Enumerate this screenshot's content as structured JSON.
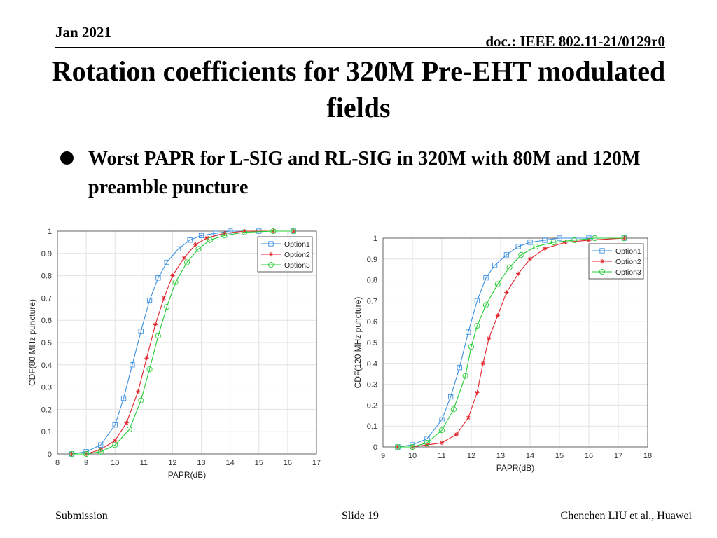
{
  "header": {
    "date": "Jan 2021",
    "doc": "doc.: IEEE 802.11-21/0129r0"
  },
  "title": "Rotation coefficients for 320M Pre-EHT modulated fields",
  "bullet": "Worst PAPR for L-SIG and RL-SIG in 320M with 80M and 120M preamble puncture",
  "footer": {
    "left": "Submission",
    "center": "Slide 19",
    "right": "Chenchen LIU et al., Huawei"
  },
  "colors": {
    "option1": "#3a8fe0",
    "option2": "#e0222a",
    "option3": "#22cc33"
  },
  "chart_data": [
    {
      "type": "line",
      "xlabel": "PAPR(dB)",
      "ylabel": "CDF(80 MHz puncture)",
      "xlim": [
        8,
        17
      ],
      "ylim": [
        0,
        1
      ],
      "xticks": [
        8,
        9,
        10,
        11,
        12,
        13,
        14,
        15,
        16,
        17
      ],
      "yticks": [
        0,
        0.1,
        0.2,
        0.3,
        0.4,
        0.5,
        0.6,
        0.7,
        0.8,
        0.9,
        1
      ],
      "grid": true,
      "legend": "top-right",
      "series": [
        {
          "name": "Option1",
          "marker": "square",
          "x": [
            8.5,
            9.0,
            9.5,
            10.0,
            10.3,
            10.6,
            10.9,
            11.2,
            11.5,
            11.8,
            12.2,
            12.6,
            13.0,
            13.5,
            14.0,
            15.0,
            16.2
          ],
          "y": [
            0.0,
            0.01,
            0.04,
            0.13,
            0.25,
            0.4,
            0.55,
            0.69,
            0.79,
            0.86,
            0.92,
            0.96,
            0.98,
            0.99,
            1.0,
            1.0,
            1.0
          ]
        },
        {
          "name": "Option2",
          "marker": "star",
          "x": [
            8.5,
            9.0,
            9.5,
            10.0,
            10.4,
            10.8,
            11.1,
            11.4,
            11.7,
            12.0,
            12.4,
            12.8,
            13.2,
            13.8,
            14.5,
            15.5,
            16.2
          ],
          "y": [
            0.0,
            0.0,
            0.02,
            0.06,
            0.14,
            0.28,
            0.43,
            0.58,
            0.7,
            0.8,
            0.88,
            0.94,
            0.97,
            0.99,
            1.0,
            1.0,
            1.0
          ]
        },
        {
          "name": "Option3",
          "marker": "circle",
          "x": [
            8.5,
            9.0,
            9.5,
            10.0,
            10.5,
            10.9,
            11.2,
            11.5,
            11.8,
            12.1,
            12.5,
            12.9,
            13.3,
            13.8,
            14.5,
            15.5,
            16.2
          ],
          "y": [
            0.0,
            0.0,
            0.01,
            0.04,
            0.11,
            0.24,
            0.38,
            0.53,
            0.66,
            0.77,
            0.86,
            0.92,
            0.96,
            0.98,
            0.995,
            1.0,
            1.0
          ]
        }
      ]
    },
    {
      "type": "line",
      "xlabel": "PAPR(dB)",
      "ylabel": "CDF(120 MHz puncture)",
      "xlim": [
        9,
        18
      ],
      "ylim": [
        0,
        1
      ],
      "xticks": [
        9,
        10,
        11,
        12,
        13,
        14,
        15,
        16,
        17,
        18
      ],
      "yticks": [
        0,
        0.1,
        0.2,
        0.3,
        0.4,
        0.5,
        0.6,
        0.7,
        0.8,
        0.9,
        1
      ],
      "grid": true,
      "legend": "top-right",
      "series": [
        {
          "name": "Option1",
          "marker": "square",
          "x": [
            9.5,
            10.0,
            10.5,
            11.0,
            11.3,
            11.6,
            11.9,
            12.2,
            12.5,
            12.8,
            13.2,
            13.6,
            14.0,
            14.5,
            15.0,
            16.0,
            17.2
          ],
          "y": [
            0.0,
            0.01,
            0.04,
            0.13,
            0.24,
            0.38,
            0.55,
            0.7,
            0.81,
            0.87,
            0.92,
            0.96,
            0.98,
            0.99,
            1.0,
            1.0,
            1.0
          ]
        },
        {
          "name": "Option2",
          "marker": "star",
          "x": [
            9.5,
            10.0,
            10.5,
            11.0,
            11.5,
            11.9,
            12.2,
            12.4,
            12.6,
            12.9,
            13.2,
            13.6,
            14.0,
            14.5,
            15.2,
            16.0,
            17.2
          ],
          "y": [
            0.0,
            0.0,
            0.01,
            0.02,
            0.06,
            0.14,
            0.26,
            0.4,
            0.52,
            0.63,
            0.74,
            0.83,
            0.9,
            0.95,
            0.98,
            0.99,
            1.0
          ]
        },
        {
          "name": "Option3",
          "marker": "circle",
          "x": [
            9.5,
            10.0,
            10.5,
            11.0,
            11.4,
            11.8,
            12.0,
            12.2,
            12.5,
            12.9,
            13.3,
            13.7,
            14.2,
            14.8,
            15.5,
            16.2,
            17.2
          ],
          "y": [
            0.0,
            0.0,
            0.02,
            0.08,
            0.18,
            0.34,
            0.48,
            0.58,
            0.68,
            0.78,
            0.86,
            0.92,
            0.96,
            0.98,
            0.99,
            1.0,
            1.0
          ]
        }
      ]
    }
  ]
}
